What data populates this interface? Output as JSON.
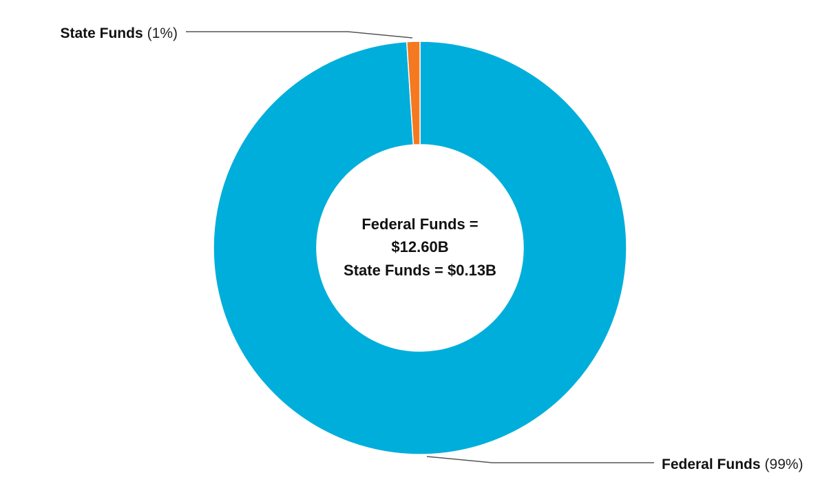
{
  "chart_data": {
    "type": "pie",
    "subtype": "donut",
    "slices": [
      {
        "label": "Federal Funds",
        "value": 12.6,
        "percent_label": "(99%)",
        "color": "#00AEDB"
      },
      {
        "label": "State Funds",
        "value": 0.13,
        "percent_label": "(1%)",
        "color": "#F47920"
      }
    ],
    "center_text": [
      "Federal Funds =",
      "$12.60B",
      "State Funds = $0.13B"
    ],
    "legend": "none"
  }
}
